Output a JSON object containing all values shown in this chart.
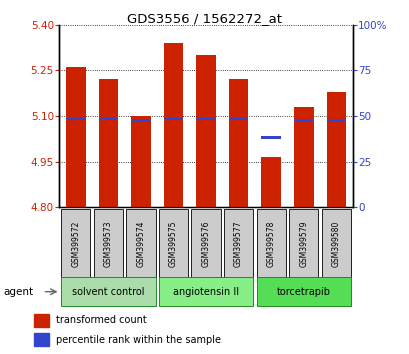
{
  "title": "GDS3556 / 1562272_at",
  "samples": [
    "GSM399572",
    "GSM399573",
    "GSM399574",
    "GSM399575",
    "GSM399576",
    "GSM399577",
    "GSM399578",
    "GSM399579",
    "GSM399580"
  ],
  "bar_values": [
    5.26,
    5.22,
    5.1,
    5.34,
    5.3,
    5.22,
    4.965,
    5.13,
    5.18
  ],
  "bar_base": 4.8,
  "blue_values": [
    5.09,
    5.09,
    5.085,
    5.09,
    5.09,
    5.09,
    5.03,
    5.085,
    5.085
  ],
  "ylim": [
    4.8,
    5.4
  ],
  "yticks_left": [
    4.8,
    4.95,
    5.1,
    5.25,
    5.4
  ],
  "yticks_right_pct": [
    0,
    25,
    50,
    75,
    100
  ],
  "bar_color": "#cc2200",
  "blue_color": "#3344cc",
  "bar_width": 0.6,
  "groups": [
    {
      "label": "solvent control",
      "samples": [
        0,
        1,
        2
      ],
      "color": "#aaddaa"
    },
    {
      "label": "angiotensin II",
      "samples": [
        3,
        4,
        5
      ],
      "color": "#88ee88"
    },
    {
      "label": "torcetrapib",
      "samples": [
        6,
        7,
        8
      ],
      "color": "#55dd55"
    }
  ],
  "agent_label": "agent",
  "legend_red": "transformed count",
  "legend_blue": "percentile rank within the sample"
}
